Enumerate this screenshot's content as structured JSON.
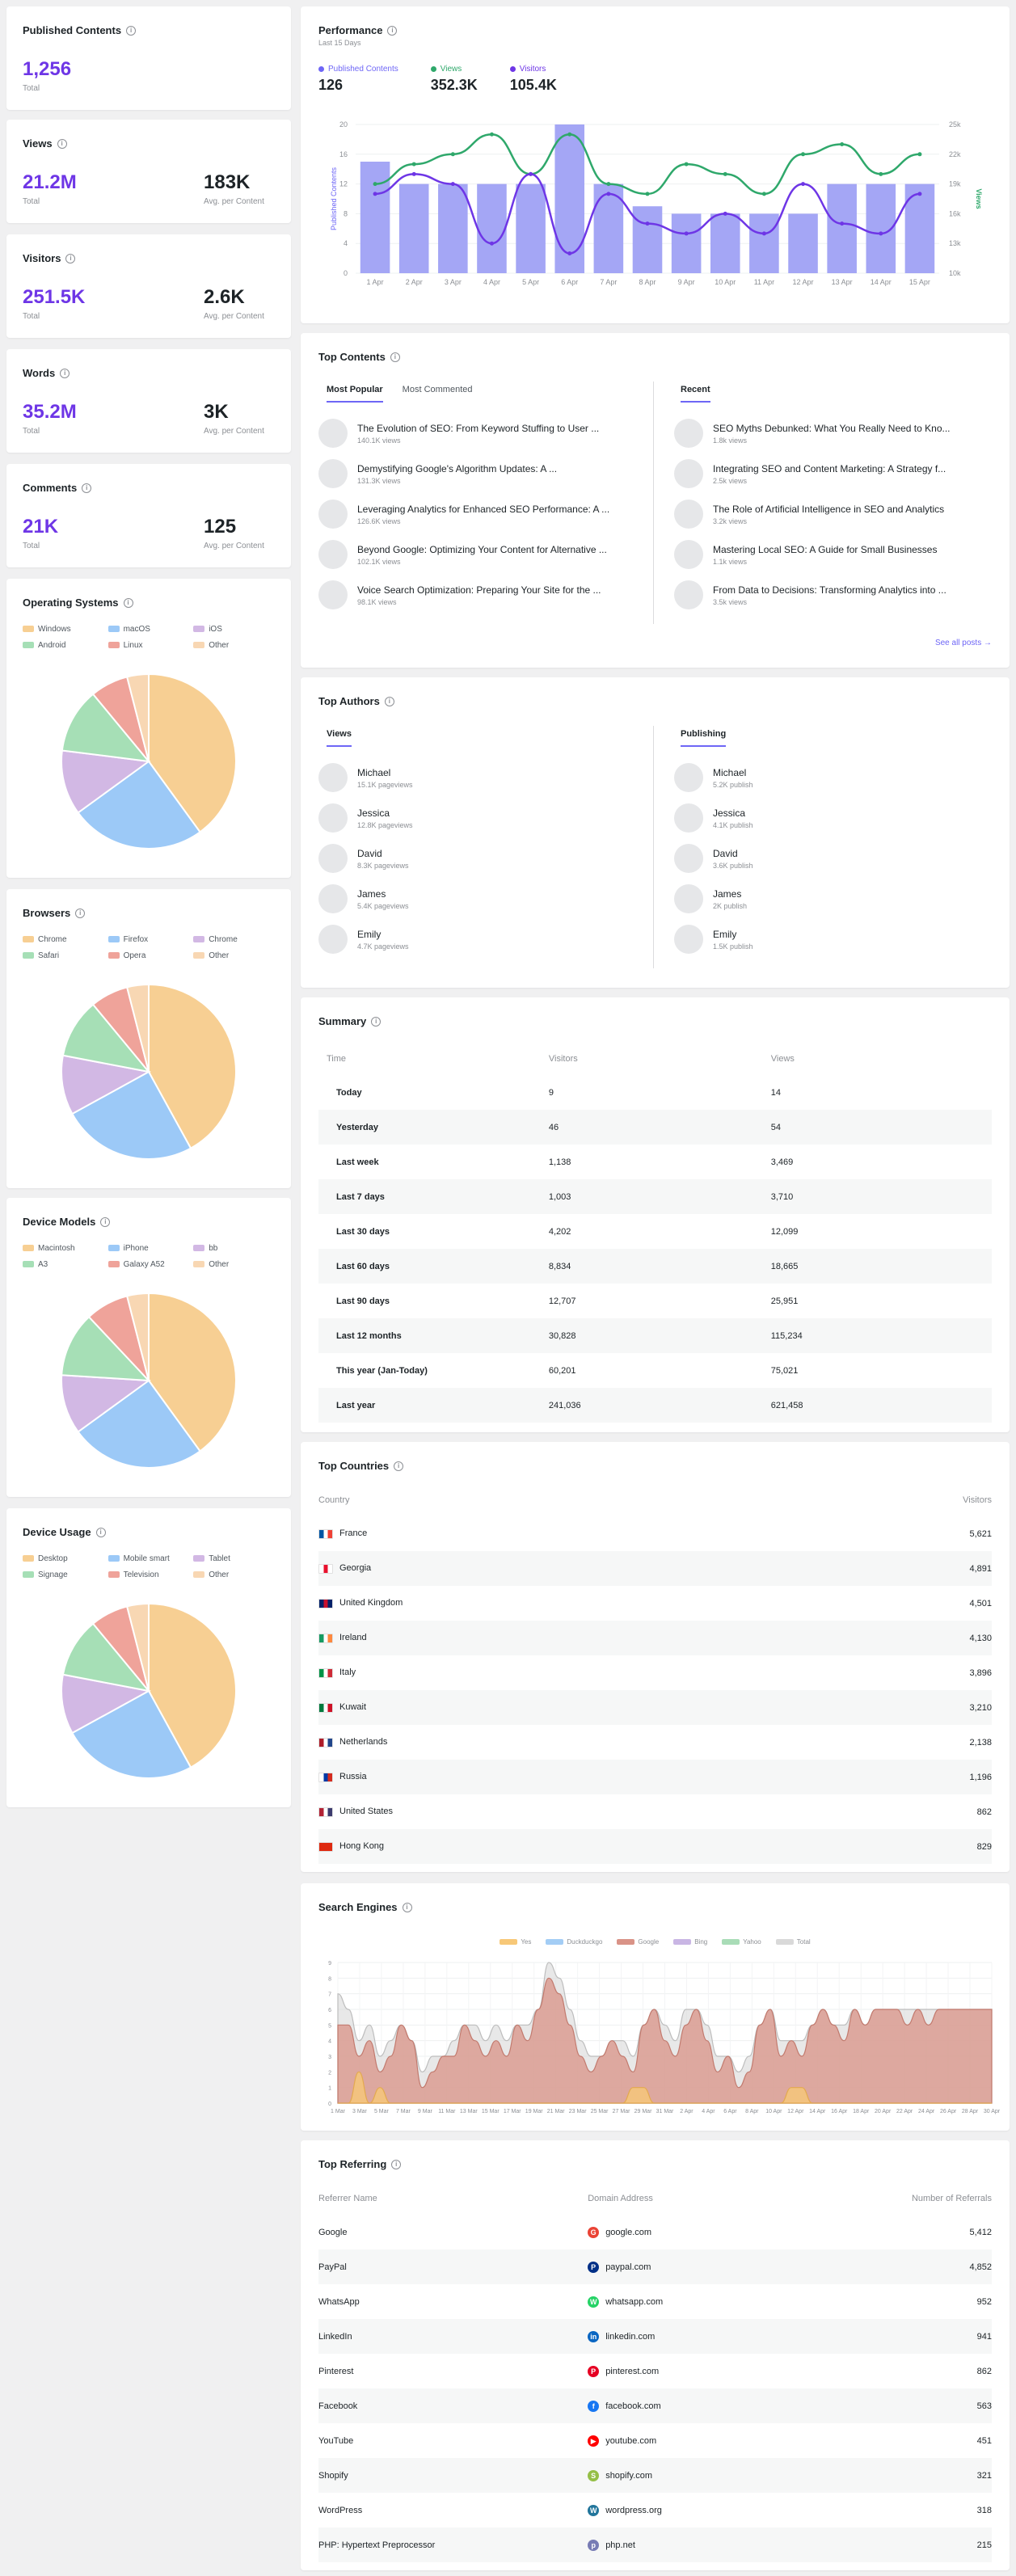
{
  "published_contents": {
    "title": "Published Contents",
    "value": "1,256",
    "sub": "Total"
  },
  "views": {
    "title": "Views",
    "value": "21.2M",
    "sub": "Total",
    "avg_value": "183K",
    "avg_sub": "Avg. per Content"
  },
  "visitors": {
    "title": "Visitors",
    "value": "251.5K",
    "sub": "Total",
    "avg_value": "2.6K",
    "avg_sub": "Avg. per Content"
  },
  "words": {
    "title": "Words",
    "value": "35.2M",
    "sub": "Total",
    "avg_value": "3K",
    "avg_sub": "Avg. per Content"
  },
  "comments": {
    "title": "Comments",
    "value": "21K",
    "sub": "Total",
    "avg_value": "125",
    "avg_sub": "Avg. per Content"
  },
  "pie_colors": [
    "#f7cf93",
    "#9cc9f7",
    "#d2b8e4",
    "#a6dfb6",
    "#efa39a",
    "#f8d7b3"
  ],
  "operating_systems": {
    "title": "Operating Systems",
    "legend": [
      "Windows",
      "macOS",
      "iOS",
      "Android",
      "Linux",
      "Other"
    ],
    "values": [
      40,
      25,
      12,
      12,
      7,
      4
    ]
  },
  "browsers": {
    "title": "Browsers",
    "legend": [
      "Chrome",
      "Firefox",
      "Chrome",
      "Safari",
      "Opera",
      "Other"
    ],
    "values": [
      42,
      25,
      11,
      11,
      7,
      4
    ]
  },
  "device_models": {
    "title": "Device Models",
    "legend": [
      "Macintosh",
      "iPhone",
      "bb",
      "A3",
      "Galaxy A52",
      "Other"
    ],
    "values": [
      40,
      25,
      11,
      12,
      8,
      4
    ]
  },
  "device_usage": {
    "title": "Device Usage",
    "legend": [
      "Desktop",
      "Mobile smart",
      "Tablet",
      "Signage",
      "Television",
      "Other"
    ],
    "values": [
      42,
      25,
      11,
      11,
      7,
      4
    ]
  },
  "performance": {
    "title": "Performance",
    "subtitle": "Last 15 Days",
    "legend": [
      {
        "label": "Published Contents",
        "value": "126",
        "color": "#6e66f6"
      },
      {
        "label": "Views",
        "value": "352.3K",
        "color": "#2fa86b"
      },
      {
        "label": "Visitors",
        "value": "105.4K",
        "color": "#6e36e6"
      }
    ],
    "left_axis_label": "Published Contents",
    "right_axis_label": "Views"
  },
  "chart_data": {
    "type": "bar",
    "title": "Performance",
    "categories": [
      "1 Apr",
      "2 Apr",
      "3 Apr",
      "4 Apr",
      "5 Apr",
      "6 Apr",
      "7 Apr",
      "8 Apr",
      "9 Apr",
      "10 Apr",
      "11 Apr",
      "12 Apr",
      "13 Apr",
      "14 Apr",
      "15 Apr"
    ],
    "ylim": [
      0,
      20
    ],
    "yticks": [
      "0",
      "4",
      "8",
      "12",
      "16",
      "20"
    ],
    "y2lim": [
      10,
      25
    ],
    "y2ticks": [
      "10k",
      "13k",
      "16k",
      "19k",
      "22k",
      "25k"
    ],
    "series": [
      {
        "name": "Published Contents",
        "type": "bar",
        "values": [
          15,
          12,
          12,
          12,
          12,
          20,
          12,
          9,
          8,
          8,
          8,
          8,
          12,
          12,
          12
        ]
      },
      {
        "name": "Views",
        "type": "line",
        "axis": "right",
        "values": [
          19,
          21,
          22,
          24,
          20,
          24,
          19,
          18,
          21,
          20,
          18,
          22,
          23,
          20,
          22
        ]
      },
      {
        "name": "Visitors",
        "type": "line",
        "axis": "right",
        "values": [
          18,
          20,
          19,
          13,
          20,
          12,
          18,
          15,
          14,
          16,
          14,
          19,
          15,
          14,
          18
        ]
      }
    ]
  },
  "top_contents": {
    "title": "Top Contents",
    "tabs": [
      "Most Popular",
      "Most Commented"
    ],
    "tab_right": "Recent",
    "left_items": [
      {
        "title": "The Evolution of SEO: From Keyword Stuffing to User ...",
        "sub": "140.1K views"
      },
      {
        "title": "Demystifying Google's Algorithm Updates: A ...",
        "sub": "131.3K views"
      },
      {
        "title": "Leveraging Analytics for Enhanced SEO Performance: A ...",
        "sub": "126.6K views"
      },
      {
        "title": "Beyond Google: Optimizing Your Content for Alternative ...",
        "sub": "102.1K views"
      },
      {
        "title": "Voice Search Optimization: Preparing Your Site for the ...",
        "sub": "98.1K views"
      }
    ],
    "right_items": [
      {
        "title": "SEO Myths Debunked: What You Really Need to Kno...",
        "sub": "1.8k views"
      },
      {
        "title": "Integrating SEO and Content Marketing: A Strategy f...",
        "sub": "2.5k views"
      },
      {
        "title": "The Role of Artificial Intelligence in SEO and Analytics",
        "sub": "3.2k views"
      },
      {
        "title": "Mastering Local SEO: A Guide for Small Businesses",
        "sub": "1.1k views"
      },
      {
        "title": "From Data to Decisions: Transforming Analytics into ...",
        "sub": "3.5k views"
      }
    ],
    "see_all": "See all posts →"
  },
  "top_authors": {
    "title": "Top Authors",
    "tab_left": "Views",
    "tab_right": "Publishing",
    "left_items": [
      {
        "name": "Michael",
        "sub": "15.1K pageviews"
      },
      {
        "name": "Jessica",
        "sub": "12.8K pageviews"
      },
      {
        "name": "David",
        "sub": "8.3K pageviews"
      },
      {
        "name": "James",
        "sub": "5.4K pageviews"
      },
      {
        "name": "Emily",
        "sub": "4.7K pageviews"
      }
    ],
    "right_items": [
      {
        "name": "Michael",
        "sub": "5.2K publish"
      },
      {
        "name": "Jessica",
        "sub": "4.1K publish"
      },
      {
        "name": "David",
        "sub": "3.6K publish"
      },
      {
        "name": "James",
        "sub": "2K publish"
      },
      {
        "name": "Emily",
        "sub": "1.5K publish"
      }
    ]
  },
  "summary": {
    "title": "Summary",
    "headers": [
      "Time",
      "Visitors",
      "Views"
    ],
    "rows": [
      [
        "Today",
        "9",
        "14"
      ],
      [
        "Yesterday",
        "46",
        "54"
      ],
      [
        "Last week",
        "1,138",
        "3,469"
      ],
      [
        "Last 7 days",
        "1,003",
        "3,710"
      ],
      [
        "Last 30 days",
        "4,202",
        "12,099"
      ],
      [
        "Last 60 days",
        "8,834",
        "18,665"
      ],
      [
        "Last 90 days",
        "12,707",
        "25,951"
      ],
      [
        "Last 12 months",
        "30,828",
        "115,234"
      ],
      [
        "This year (Jan-Today)",
        "60,201",
        "75,021"
      ],
      [
        "Last year",
        "241,036",
        "621,458"
      ]
    ]
  },
  "top_countries": {
    "title": "Top Countries",
    "headers": [
      "Country",
      "Visitors"
    ],
    "rows": [
      {
        "name": "France",
        "value": "5,621",
        "flag": [
          "#0055a4",
          "#ffffff",
          "#ef4135"
        ]
      },
      {
        "name": "Georgia",
        "value": "4,891",
        "flag": [
          "#ffffff",
          "#e8112d",
          "#ffffff"
        ]
      },
      {
        "name": "United Kingdom",
        "value": "4,501",
        "flag": [
          "#012169",
          "#c8102e",
          "#012169"
        ]
      },
      {
        "name": "Ireland",
        "value": "4,130",
        "flag": [
          "#169b62",
          "#ffffff",
          "#ff883e"
        ]
      },
      {
        "name": "Italy",
        "value": "3,896",
        "flag": [
          "#009246",
          "#ffffff",
          "#ce2b37"
        ]
      },
      {
        "name": "Kuwait",
        "value": "3,210",
        "flag": [
          "#007a3d",
          "#ffffff",
          "#ce1126"
        ]
      },
      {
        "name": "Netherlands",
        "value": "2,138",
        "flag": [
          "#ae1c28",
          "#ffffff",
          "#21468b"
        ]
      },
      {
        "name": "Russia",
        "value": "1,196",
        "flag": [
          "#ffffff",
          "#0039a6",
          "#d52b1e"
        ]
      },
      {
        "name": "United States",
        "value": "862",
        "flag": [
          "#b22234",
          "#ffffff",
          "#3c3b6e"
        ]
      },
      {
        "name": "Hong Kong",
        "value": "829",
        "flag": [
          "#de2910",
          "#de2910",
          "#de2910"
        ]
      }
    ]
  },
  "search_engines": {
    "title": "Search Engines",
    "legend": [
      {
        "label": "Yes",
        "color": "#f7c878"
      },
      {
        "label": "Duckduckgo",
        "color": "#a3cdf5"
      },
      {
        "label": "Google",
        "color": "#d99387"
      },
      {
        "label": "Bing",
        "color": "#c9b6e4"
      },
      {
        "label": "Yahoo",
        "color": "#a9dcb7"
      },
      {
        "label": "Total",
        "color": "#d9d9d9"
      }
    ],
    "yticks": [
      "0",
      "1",
      "2",
      "3",
      "4",
      "5",
      "6",
      "7",
      "8",
      "9"
    ],
    "xlabels": [
      "1 Mar",
      "3 Mar",
      "5 Mar",
      "7 Mar",
      "9 Mar",
      "11 Mar",
      "13 Mar",
      "15 Mar",
      "17 Mar",
      "19 Mar",
      "21 Mar",
      "23 Mar",
      "25 Mar",
      "27 Mar",
      "29 Mar",
      "31 Mar",
      "2 Apr",
      "4 Apr",
      "6 Apr",
      "8 Apr",
      "10 Apr",
      "12 Apr",
      "14 Apr",
      "16 Apr",
      "18 Apr",
      "20 Apr",
      "22 Apr",
      "24 Apr",
      "26 Apr",
      "28 Apr",
      "30 Apr"
    ],
    "google": [
      5,
      5,
      3,
      4,
      2,
      3,
      5,
      4,
      1,
      2,
      3,
      3,
      5,
      4,
      3,
      4,
      3,
      5,
      4,
      6,
      8,
      7,
      5,
      3,
      2,
      3,
      4,
      3,
      2,
      5,
      6,
      4,
      3,
      5,
      6,
      4,
      2,
      3,
      1,
      2,
      5,
      6,
      3,
      4,
      3,
      5,
      6,
      5,
      4,
      6,
      5,
      6,
      6,
      6,
      5,
      6,
      5,
      6,
      6,
      6,
      6,
      6,
      6
    ],
    "total": [
      7,
      6,
      4,
      5,
      3,
      4,
      5,
      4,
      2,
      3,
      3,
      4,
      5,
      5,
      4,
      5,
      4,
      5,
      5,
      6,
      9,
      8,
      6,
      4,
      3,
      3,
      4,
      4,
      3,
      5,
      6,
      5,
      4,
      6,
      6,
      5,
      3,
      3,
      2,
      3,
      5,
      6,
      4,
      4,
      4,
      5,
      6,
      5,
      5,
      6,
      5,
      6,
      6,
      6,
      6,
      6,
      6,
      6,
      6,
      6,
      6,
      6,
      6
    ],
    "yes": [
      0,
      0,
      2,
      0,
      1,
      0,
      0,
      0,
      0,
      0,
      0,
      0,
      0,
      0,
      0,
      0,
      0,
      0,
      0,
      0,
      0,
      0,
      0,
      0,
      0,
      0,
      0,
      0,
      1,
      1,
      0,
      0,
      0,
      0,
      0,
      0,
      0,
      0,
      0,
      0,
      0,
      0,
      0,
      1,
      1,
      0,
      0,
      0,
      0,
      0,
      0,
      0,
      0,
      0,
      0,
      0,
      0,
      0,
      0,
      0,
      0,
      0,
      0
    ]
  },
  "top_referring": {
    "title": "Top Referring",
    "headers": [
      "Referrer Name",
      "Domain Address",
      "Number of Referrals"
    ],
    "rows": [
      {
        "name": "Google",
        "domain": "google.com",
        "count": "5,412",
        "color": "#ea4335",
        "glyph": "G"
      },
      {
        "name": "PayPal",
        "domain": "paypal.com",
        "count": "4,852",
        "color": "#003087",
        "glyph": "P"
      },
      {
        "name": "WhatsApp",
        "domain": "whatsapp.com",
        "count": "952",
        "color": "#25d366",
        "glyph": "W"
      },
      {
        "name": "LinkedIn",
        "domain": "linkedin.com",
        "count": "941",
        "color": "#0a66c2",
        "glyph": "in"
      },
      {
        "name": "Pinterest",
        "domain": "pinterest.com",
        "count": "862",
        "color": "#e60023",
        "glyph": "P"
      },
      {
        "name": "Facebook",
        "domain": "facebook.com",
        "count": "563",
        "color": "#1877f2",
        "glyph": "f"
      },
      {
        "name": "YouTube",
        "domain": "youtube.com",
        "count": "451",
        "color": "#ff0000",
        "glyph": "▶"
      },
      {
        "name": "Shopify",
        "domain": "shopify.com",
        "count": "321",
        "color": "#95bf47",
        "glyph": "S"
      },
      {
        "name": "WordPress",
        "domain": "wordpress.org",
        "count": "318",
        "color": "#21759b",
        "glyph": "W"
      },
      {
        "name": "PHP: Hypertext Preprocessor",
        "domain": "php.net",
        "count": "215",
        "color": "#777bb4",
        "glyph": "p"
      }
    ]
  }
}
